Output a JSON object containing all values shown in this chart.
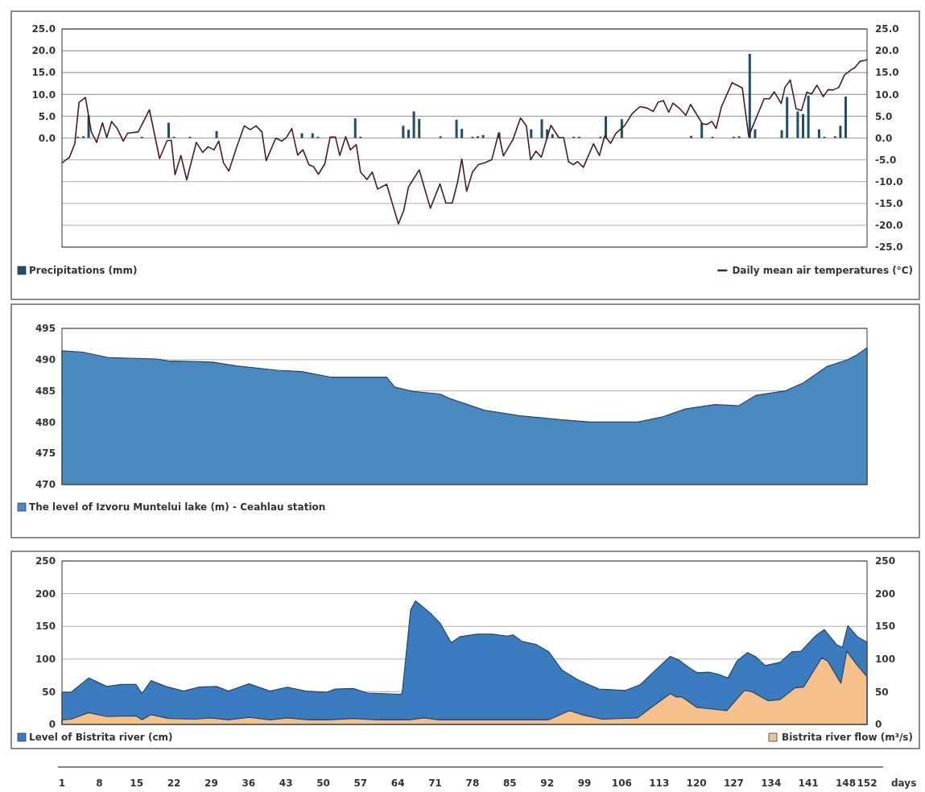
{
  "chart_data": [
    {
      "type": "line",
      "xlim": [
        1,
        152
      ],
      "tick_labels": "y",
      "ylim": [
        -25,
        25
      ],
      "yticks": [
        {
          "value": 0,
          "label": "0.0"
        },
        {
          "value": 5,
          "label": "5.0"
        },
        {
          "value": 10,
          "label": "10.0"
        },
        {
          "value": 15,
          "label": "15.0"
        },
        {
          "value": 20,
          "label": "20.0"
        },
        {
          "value": 25,
          "label": "25.0"
        }
      ],
      "y2lim": [
        -25,
        25
      ],
      "y2ticks": [
        {
          "value": -25,
          "label": "-25.0"
        },
        {
          "value": -20,
          "label": "-20.0"
        },
        {
          "value": -15,
          "label": "-15.0"
        },
        {
          "value": -10,
          "label": "-10.0"
        },
        {
          "value": -5,
          "label": "-5.0"
        },
        {
          "value": 0,
          "label": "0.0"
        },
        {
          "value": 5,
          "label": "5.0"
        },
        {
          "value": 10,
          "label": "10.0"
        },
        {
          "value": 15,
          "label": "15.0"
        },
        {
          "value": 20,
          "label": "20.0"
        },
        {
          "value": 25,
          "label": "25.0"
        }
      ],
      "grid": true,
      "legend": "bottom",
      "series": [
        {
          "name": "Precipitations (mm)",
          "type": "bar",
          "color": "#1f4e68",
          "x": [
            4,
            5,
            6,
            16,
            21,
            22,
            25,
            30,
            46,
            48,
            49,
            56,
            57,
            65,
            66,
            67,
            68,
            72,
            75,
            76,
            78,
            79,
            80,
            83,
            89,
            91,
            92,
            93,
            97,
            98,
            102,
            103,
            106,
            119,
            121,
            123,
            127,
            128,
            130,
            131,
            136,
            137,
            139,
            140,
            141,
            143,
            144,
            146,
            147,
            148
          ],
          "values": [
            0.3,
            0.4,
            5.2,
            0.3,
            3.5,
            0.3,
            0.3,
            1.6,
            1.1,
            1.1,
            0.3,
            4.5,
            0.3,
            2.8,
            1.9,
            6.1,
            4.4,
            0.4,
            4.2,
            2.1,
            0.3,
            0.4,
            0.7,
            1.3,
            2.0,
            4.3,
            2.0,
            0.9,
            0.3,
            0.3,
            0.3,
            5.0,
            4.3,
            0.5,
            3.5,
            0.3,
            0.3,
            0.4,
            19.3,
            2.0,
            1.8,
            9.4,
            6.1,
            5.5,
            9.7,
            2.0,
            0.3,
            0.4,
            2.8,
            9.5
          ]
        },
        {
          "name": "Daily mean air temperatures (°C)",
          "axis": "y2",
          "color": "#4a1c22",
          "x": [
            1,
            2.4,
            3.4,
            4.2,
            5.4,
            6.5,
            7.5,
            8.6,
            9.4,
            10.3,
            11.4,
            12.5,
            13.3,
            15.3,
            17.4,
            19.3,
            20.7,
            21.5,
            22.2,
            23.3,
            24.4,
            26.2,
            27.4,
            28.4,
            29.5,
            30.4,
            31.3,
            32.3,
            33.7,
            35.2,
            36.3,
            37.4,
            38.5,
            39.3,
            41.1,
            42.2,
            43.1,
            44.1,
            45.2,
            46.2,
            47.3,
            48.2,
            49.1,
            50.3,
            51.3,
            52.3,
            53.1,
            54.2,
            55.1,
            56.2,
            57.0,
            58.2,
            59.2,
            60.2,
            61.9,
            64.1,
            65.1,
            66.0,
            68.0,
            70.1,
            71.9,
            73.0,
            74.2,
            75.2,
            76.0,
            76.9,
            78.0,
            79.1,
            80.2,
            81.6,
            82.9,
            83.8,
            85.6,
            87.0,
            88.1,
            88.9,
            89.9,
            90.9,
            92.7,
            94.2,
            95.1,
            96.0,
            96.9,
            97.7,
            98.8,
            100.7,
            101.8,
            102.8,
            103.9,
            104.9,
            106.5,
            107.9,
            109.4,
            110.7,
            111.9,
            112.8,
            113.8,
            114.8,
            115.6,
            116.9,
            118.0,
            118.9,
            119.8,
            121.1,
            121.9,
            122.9,
            123.7,
            124.7,
            126.7,
            128.6,
            129.8,
            130.6,
            132.7,
            133.7,
            134.6,
            135.9,
            136.6,
            137.6,
            138.7,
            139.7,
            140.7,
            141.6,
            142.6,
            143.8,
            144.7,
            145.6,
            146.7,
            147.8,
            149.1,
            149.7,
            150.7,
            151.6,
            152
          ],
          "values": [
            -5.7,
            -4.4,
            -1.3,
            8.2,
            9.3,
            1.4,
            -1.0,
            3.5,
            0.1,
            3.8,
            2.1,
            -0.7,
            1.1,
            1.4,
            6.5,
            -4.7,
            -0.6,
            -0.5,
            -8.4,
            -4.0,
            -9.6,
            -1.0,
            -3.3,
            -2.0,
            -2.7,
            -0.7,
            -5.7,
            -7.6,
            -2.3,
            2.8,
            1.9,
            2.8,
            1.4,
            -5.2,
            0.0,
            -0.7,
            0.1,
            2.2,
            -3.9,
            -2.7,
            -6.1,
            -6.6,
            -8.3,
            -5.9,
            0.2,
            0.2,
            -4.0,
            0.3,
            -2.7,
            -1.5,
            -7.8,
            -9.5,
            -7.8,
            -11.7,
            -10.6,
            -19.7,
            -16.6,
            -11.2,
            -7.3,
            -16.1,
            -10.5,
            -14.9,
            -14.9,
            -10.1,
            -4.8,
            -12.2,
            -7.8,
            -6.1,
            -5.7,
            -5.0,
            1.1,
            -4.1,
            -0.3,
            4.6,
            2.8,
            -5.0,
            -3.0,
            -4.4,
            2.9,
            0.1,
            0.1,
            -5.4,
            -6.1,
            -5.4,
            -6.7,
            -1.3,
            -4.0,
            0.5,
            -1.2,
            1.1,
            2.8,
            5.5,
            7.2,
            6.9,
            6.1,
            8.2,
            8.6,
            5.9,
            8.0,
            6.7,
            5.2,
            7.7,
            5.9,
            3.3,
            3.1,
            3.8,
            2.2,
            7.2,
            12.7,
            11.5,
            0.4,
            2.8,
            9.0,
            9.0,
            10.6,
            7.9,
            11.6,
            13.3,
            6.7,
            6.3,
            10.5,
            10.1,
            12.1,
            9.5,
            11.1,
            11.0,
            11.6,
            14.5,
            15.7,
            16.1,
            17.6,
            17.8,
            18.0
          ]
        }
      ]
    },
    {
      "type": "area",
      "xlim": [
        1,
        152
      ],
      "tick_labels": "y",
      "ylim": [
        470,
        495
      ],
      "yticks": [
        470,
        475,
        480,
        485,
        490,
        495
      ],
      "grid": "y",
      "legend": "bottom",
      "series": [
        {
          "name": "The level of Izvoru Muntelui lake (m) - Ceahlau station",
          "color": "#4a89c0",
          "x": [
            1,
            4.9,
            9.9,
            18.7,
            20.9,
            29.2,
            33.7,
            41.4,
            45.9,
            51.4,
            61.9,
            63.4,
            66.9,
            71.9,
            73.6,
            80.2,
            86.9,
            95.7,
            100.2,
            109,
            113.5,
            117.9,
            123.5,
            127.9,
            131.2,
            136.7,
            140.1,
            144.5,
            148.4,
            150,
            152
          ],
          "values": [
            491.4,
            491.2,
            490.3,
            490.1,
            489.8,
            489.6,
            489.0,
            488.3,
            488.1,
            487.2,
            487.2,
            485.6,
            484.9,
            484.5,
            483.8,
            481.9,
            481.0,
            480.3,
            480.0,
            480.0,
            480.8,
            482.1,
            482.8,
            482.6,
            484.3,
            485.0,
            486.3,
            488.9,
            490.0,
            490.7,
            491.9
          ]
        }
      ]
    },
    {
      "type": "area",
      "xlim": [
        1,
        152
      ],
      "xticks": [
        1,
        8,
        15,
        22,
        29,
        36,
        43,
        50,
        57,
        64,
        71,
        78,
        85,
        92,
        99,
        106,
        113,
        120,
        127,
        134,
        141,
        148,
        152
      ],
      "xlabel": "days",
      "ylim": [
        0,
        250
      ],
      "yticks": [
        0,
        50,
        100,
        150,
        200,
        250
      ],
      "y2lim": [
        0,
        250
      ],
      "y2ticks": [
        0,
        50,
        100,
        150,
        200,
        250
      ],
      "grid": "y",
      "legend": "bottom",
      "series": [
        {
          "name": "Level of Bistrita river (cm)",
          "color": "#3b7bbf",
          "x": [
            1,
            2.7,
            6,
            9.4,
            12.1,
            14.9,
            16,
            17.7,
            20.5,
            23.8,
            26.6,
            30,
            32.2,
            36.1,
            40,
            43.3,
            46.7,
            50.6,
            52.2,
            55.6,
            58.3,
            64.2,
            64.8,
            66.4,
            67.3,
            70,
            72,
            74,
            75.6,
            78.9,
            81.7,
            84.5,
            85.6,
            87.3,
            90,
            92.3,
            94.8,
            97.8,
            101.7,
            106.7,
            109.5,
            112.3,
            115.1,
            116.8,
            118.4,
            120.1,
            122.3,
            124,
            125.9,
            127.6,
            129.6,
            131.2,
            132.9,
            135.7,
            137.9,
            139.6,
            142.4,
            144,
            146.3,
            147.4,
            148.4,
            150.2,
            152
          ],
          "values": [
            49,
            49,
            71,
            58,
            61,
            61,
            47,
            67,
            58,
            51,
            57,
            58,
            51,
            62,
            51,
            57,
            51,
            49,
            54,
            55,
            48,
            46,
            47,
            175,
            189,
            171,
            154,
            125,
            134,
            138,
            138,
            135,
            137,
            127,
            122,
            111,
            83,
            68,
            54,
            52,
            61,
            83,
            104,
            98,
            88,
            79,
            80,
            77,
            71,
            97,
            110,
            103,
            90,
            95,
            111,
            112,
            136,
            145,
            122,
            118,
            151,
            134,
            126
          ]
        },
        {
          "name": "Bistrita river flow (m³/s)",
          "axis": "y2",
          "color": "#f5c08a",
          "x": [
            1,
            2.7,
            6,
            9.4,
            14.9,
            16,
            17.7,
            21,
            26,
            28.8,
            32.2,
            36.1,
            40,
            43.3,
            47.2,
            51.1,
            55.6,
            60,
            66.1,
            68.9,
            71.7,
            81.1,
            92.3,
            96.2,
            98.9,
            102.3,
            109,
            111.2,
            115.1,
            116.2,
            117.3,
            120.1,
            122.3,
            125.7,
            129,
            130.4,
            133.5,
            135.7,
            138.5,
            140.1,
            143.5,
            144.6,
            147.1,
            148.2,
            150.2,
            152
          ],
          "values": [
            7,
            8,
            18,
            12,
            13,
            7,
            15,
            9,
            8,
            10,
            7,
            11,
            7,
            10,
            7,
            7,
            9,
            7,
            7,
            10,
            7,
            7,
            7,
            21,
            14,
            8,
            10,
            24,
            47,
            42,
            42,
            26,
            24,
            21,
            52,
            50,
            36,
            38,
            56,
            57,
            102,
            97,
            63,
            112,
            90,
            73
          ]
        }
      ]
    }
  ]
}
